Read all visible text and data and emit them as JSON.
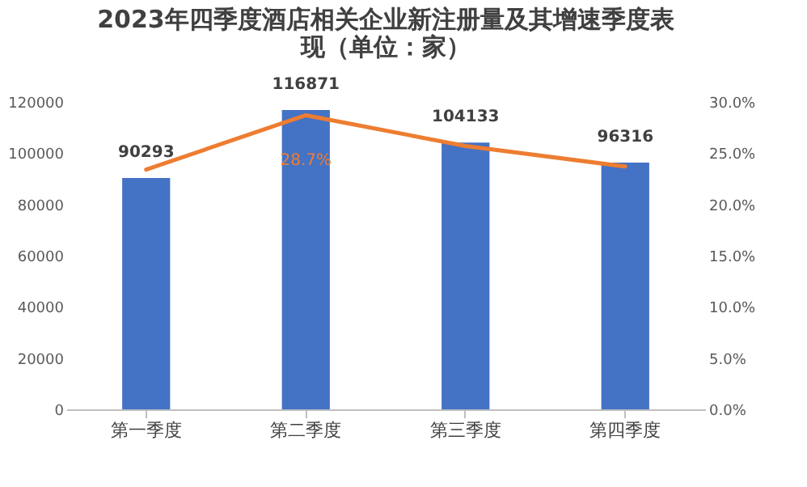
{
  "chart_data": {
    "type": "bar",
    "title": "2023年四季度酒店相关企业新注册量及其增速季度表现（单位：家）",
    "categories": [
      "第一季度",
      "第二季度",
      "第三季度",
      "第四季度"
    ],
    "series": [
      {
        "color": "#4472c4",
        "values": [
          90293,
          116871,
          104133,
          96316
        ],
        "value_labels": [
          "90293",
          "116871",
          "104133",
          "96316"
        ]
      },
      {
        "type": "line",
        "axis": "y2",
        "color": "#ed7d31",
        "values": [
          23.4,
          28.7,
          25.7,
          23.7
        ],
        "value_labels": [
          null,
          "28.7%",
          null,
          null
        ]
      }
    ],
    "ylim": [
      0,
      120000
    ],
    "yticks": [
      0,
      20000,
      40000,
      60000,
      80000,
      100000,
      120000
    ],
    "y2lim": [
      0,
      30
    ],
    "y2ticks": [
      {
        "value": 0,
        "label": "0.0%"
      },
      {
        "value": 5,
        "label": "5.0%"
      },
      {
        "value": 10,
        "label": "10.0%"
      },
      {
        "value": 15,
        "label": "15.0%"
      },
      {
        "value": 20,
        "label": "20.0%"
      },
      {
        "value": 25,
        "label": "25.0%"
      },
      {
        "value": 30,
        "label": "30.0%"
      }
    ],
    "grid": false
  }
}
